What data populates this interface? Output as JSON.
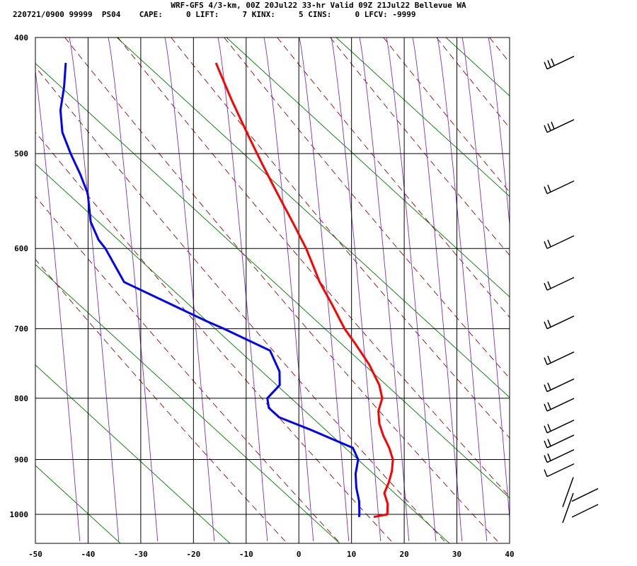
{
  "header": {
    "title": "WRF-GFS 4/3-km, 00Z 20Jul22 33-hr Valid 09Z 21Jul22 Bellevue WA",
    "stats_line": "220721/0900 99999  PS04    CAPE:     0 LIFT:     7 KINX:     5 CINS:     0 LFCV: -9999"
  },
  "chart_data": {
    "type": "line",
    "subtype": "skew-t-log-p",
    "title": "WRF-GFS 4/3-km, 00Z 20Jul22 33-hr Valid 09Z 21Jul22 Bellevue WA",
    "xlabel": "",
    "ylabel": "",
    "x_ticks": [
      -50,
      -40,
      -30,
      -20,
      -10,
      0,
      10,
      20,
      30,
      40
    ],
    "y_ticks": [
      400,
      500,
      600,
      700,
      800,
      900,
      1000
    ],
    "xlim": [
      -50,
      40
    ],
    "ylim_hPa": [
      1040,
      400
    ],
    "y_scale": "log",
    "grid": true,
    "colors": {
      "temperature": "#ff0000",
      "dewpoint": "#0000ff",
      "isotherm_grid": "#000000",
      "dry_adiabat": "#8b0000",
      "moist_adiabat": "#7b2fbe",
      "mixing_ratio": "#007a00"
    },
    "series": [
      {
        "key": "temperature",
        "pressure_hPa": [
          1005,
          1000,
          980,
          960,
          940,
          920,
          900,
          880,
          860,
          840,
          820,
          800,
          780,
          750,
          720,
          700,
          670,
          640,
          620,
          600,
          570,
          540,
          510,
          480,
          450,
          420
        ],
        "temp_C": [
          14.3,
          16.8,
          16.5,
          15.5,
          16.0,
          16.2,
          16.0,
          14.9,
          13.4,
          12.2,
          11.6,
          11.9,
          10.9,
          8.3,
          4.9,
          2.4,
          -0.6,
          -3.9,
          -5.7,
          -7.6,
          -11.1,
          -14.9,
          -18.8,
          -22.8,
          -26.9,
          -31.0
        ]
      },
      {
        "key": "dewpoint",
        "pressure_hPa": [
          1005,
          1000,
          975,
          950,
          925,
          900,
          880,
          850,
          830,
          815,
          800,
          780,
          760,
          730,
          700,
          690,
          640,
          600,
          590,
          570,
          540,
          520,
          500,
          480,
          460,
          440,
          420
        ],
        "temp_C": [
          11.5,
          11.5,
          11.0,
          10.0,
          9.4,
          9.4,
          8.0,
          -0.6,
          -7.0,
          -9.3,
          -9.9,
          -8.0,
          -8.5,
          -11.0,
          -20.5,
          -24.0,
          -41.0,
          -45.7,
          -47.3,
          -49.4,
          -50.9,
          -53.0,
          -55.5,
          -57.8,
          -58.9,
          -59.0,
          -59.5
        ]
      }
    ],
    "wind_barbs": [
      {
        "pressure_hPa": 425,
        "label": "30kt"
      },
      {
        "pressure_hPa": 480,
        "label": "30kt"
      },
      {
        "pressure_hPa": 540,
        "label": "20kt"
      },
      {
        "pressure_hPa": 600,
        "label": "20kt"
      },
      {
        "pressure_hPa": 650,
        "label": "20kt"
      },
      {
        "pressure_hPa": 700,
        "label": "20kt"
      },
      {
        "pressure_hPa": 750,
        "label": "15kt"
      },
      {
        "pressure_hPa": 790,
        "label": "15kt"
      },
      {
        "pressure_hPa": 820,
        "label": "15kt"
      },
      {
        "pressure_hPa": 855,
        "label": "15kt"
      },
      {
        "pressure_hPa": 880,
        "label": "15kt"
      },
      {
        "pressure_hPa": 905,
        "label": "15kt"
      },
      {
        "pressure_hPa": 930,
        "label": "10kt"
      },
      {
        "pressure_hPa": 970,
        "label": "10kt"
      },
      {
        "pressure_hPa": 1000,
        "label": "10kt"
      }
    ]
  }
}
